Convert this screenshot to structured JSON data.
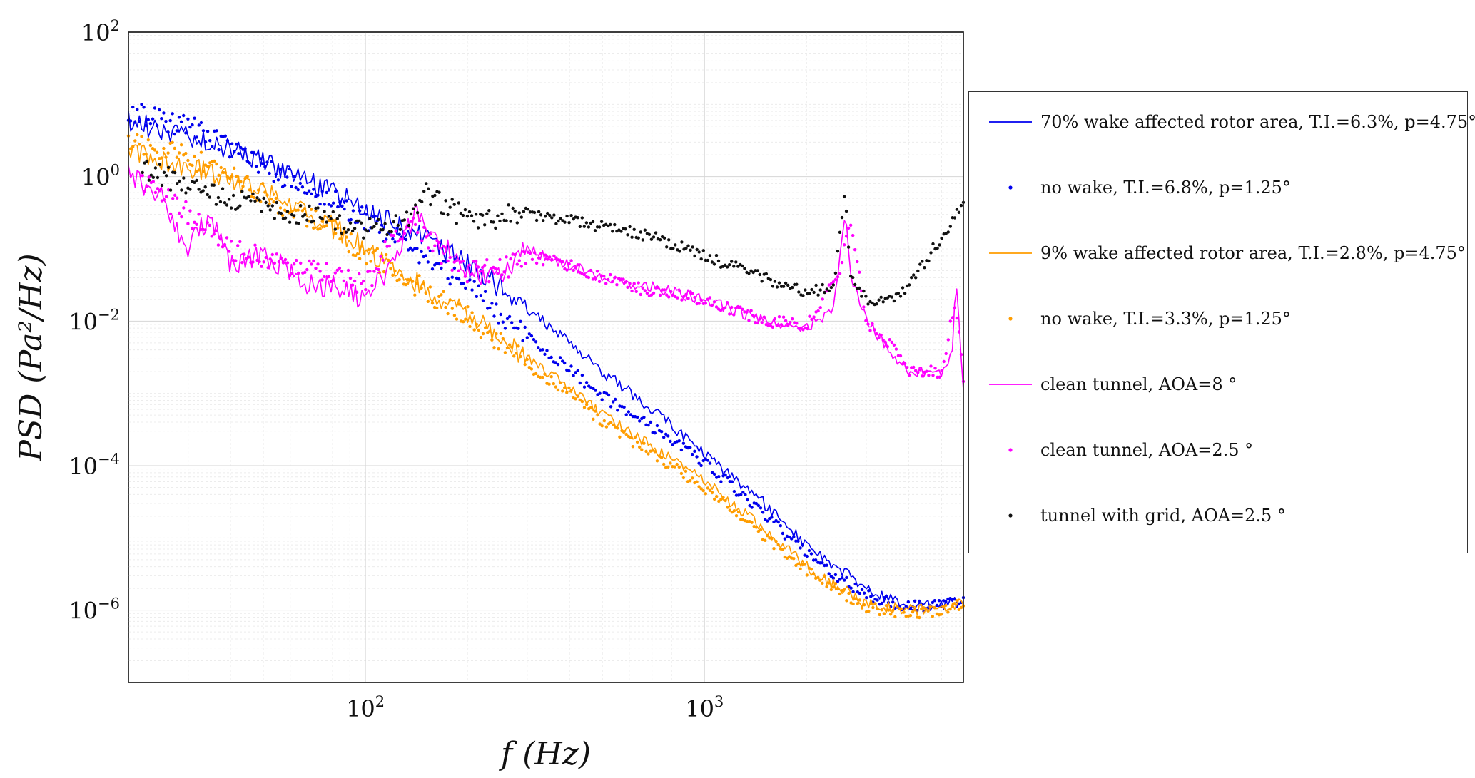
{
  "chart_data": {
    "type": "line",
    "scale": {
      "x": "log",
      "y": "log"
    },
    "xlabel": "f (Hz)",
    "ylabel": "PSD (Pa²/Hz)",
    "xlim": [
      20,
      5800
    ],
    "ylim": [
      1e-07,
      100
    ],
    "grid": true,
    "legend_position": "outside-right",
    "x_ticks": [
      {
        "value": 100,
        "base": "10",
        "exp": "2"
      },
      {
        "value": 1000,
        "base": "10",
        "exp": "3"
      }
    ],
    "y_ticks": [
      {
        "value": 100,
        "base": "10",
        "exp": "2"
      },
      {
        "value": 1,
        "base": "10",
        "exp": "0"
      },
      {
        "value": 0.01,
        "base": "10",
        "exp": "−2"
      },
      {
        "value": 0.0001,
        "base": "10",
        "exp": "−4"
      },
      {
        "value": 1e-06,
        "base": "10",
        "exp": "−6"
      }
    ],
    "series": [
      {
        "name": "70% wake affected rotor area, T.I.=6.3%, p=4.75°",
        "style": "line",
        "color": "#0000ee",
        "x": [
          20,
          30,
          40,
          50,
          60,
          80,
          100,
          130,
          160,
          200,
          250,
          300,
          400,
          500,
          700,
          1000,
          1500,
          2000,
          3000,
          4000,
          5000,
          5800
        ],
        "y": [
          6,
          3.5,
          2.5,
          1.6,
          1.1,
          0.6,
          0.35,
          0.2,
          0.12,
          0.06,
          0.03,
          0.015,
          0.005,
          0.002,
          0.0006,
          0.00015,
          3e-05,
          8e-06,
          2e-06,
          1.1e-06,
          1.2e-06,
          1.3e-06
        ]
      },
      {
        "name": "no wake, T.I.=6.8%, p=1.25°",
        "style": "dots",
        "color": "#0000ee",
        "x": [
          20,
          30,
          40,
          50,
          60,
          80,
          100,
          130,
          160,
          200,
          250,
          300,
          400,
          500,
          700,
          1000,
          1500,
          2000,
          3000,
          4000,
          5000,
          5800
        ],
        "y": [
          8,
          5,
          2.5,
          1.5,
          0.9,
          0.5,
          0.25,
          0.12,
          0.06,
          0.03,
          0.012,
          0.006,
          0.0022,
          0.0009,
          0.00035,
          0.00011,
          2.2e-05,
          6e-06,
          1.6e-06,
          1.1e-06,
          1.2e-06,
          1.3e-06
        ]
      },
      {
        "name": "9% wake affected rotor area, T.I.=2.8%, p=4.75°",
        "style": "line",
        "color": "#ff9d00",
        "x": [
          20,
          30,
          40,
          50,
          60,
          80,
          100,
          130,
          160,
          200,
          250,
          300,
          400,
          500,
          700,
          1000,
          1500,
          2000,
          3000,
          4000,
          5000,
          5800
        ],
        "y": [
          2.2,
          1.4,
          1.0,
          0.6,
          0.4,
          0.2,
          0.1,
          0.045,
          0.025,
          0.012,
          0.006,
          0.003,
          0.0012,
          0.0005,
          0.00018,
          6e-05,
          1.3e-05,
          4e-06,
          1.2e-06,
          1e-06,
          1.1e-06,
          1.3e-06
        ]
      },
      {
        "name": "no wake, T.I.=3.3%, p=1.25°",
        "style": "dots",
        "color": "#ff9d00",
        "x": [
          20,
          30,
          40,
          50,
          60,
          80,
          100,
          130,
          160,
          200,
          250,
          300,
          400,
          500,
          700,
          1000,
          1500,
          2000,
          3000,
          4000,
          5000,
          5800
        ],
        "y": [
          3,
          1.8,
          1.0,
          0.55,
          0.35,
          0.18,
          0.09,
          0.04,
          0.022,
          0.011,
          0.005,
          0.0025,
          0.001,
          0.0004,
          0.00015,
          5e-05,
          1.1e-05,
          3.5e-06,
          1.1e-06,
          9e-07,
          1e-06,
          1.2e-06
        ]
      },
      {
        "name": "clean tunnel, AOA=8 °",
        "style": "line",
        "color": "#ff00ff",
        "x": [
          20,
          25,
          30,
          35,
          40,
          50,
          60,
          70,
          80,
          100,
          120,
          140,
          160,
          200,
          250,
          300,
          400,
          500,
          700,
          1000,
          1500,
          2000,
          2400,
          2600,
          2700,
          3000,
          3500,
          4000,
          5000,
          5400,
          5500,
          5800
        ],
        "y": [
          1.2,
          0.5,
          0.1,
          0.3,
          0.06,
          0.08,
          0.05,
          0.03,
          0.03,
          0.02,
          0.06,
          0.3,
          0.15,
          0.05,
          0.04,
          0.1,
          0.06,
          0.04,
          0.03,
          0.02,
          0.01,
          0.008,
          0.015,
          0.35,
          0.04,
          0.01,
          0.004,
          0.002,
          0.002,
          0.004,
          0.05,
          0.0012
        ]
      },
      {
        "name": "clean tunnel, AOA=2.5 °",
        "style": "dots",
        "color": "#ff00ff",
        "x": [
          22,
          30,
          40,
          50,
          60,
          80,
          100,
          120,
          140,
          160,
          200,
          250,
          300,
          400,
          500,
          700,
          1000,
          1500,
          2000,
          2500,
          2700,
          3000,
          3500,
          4000,
          5000,
          5500,
          5800
        ],
        "y": [
          0.8,
          0.3,
          0.1,
          0.08,
          0.06,
          0.05,
          0.03,
          0.15,
          0.2,
          0.1,
          0.05,
          0.05,
          0.08,
          0.06,
          0.04,
          0.025,
          0.02,
          0.01,
          0.009,
          0.05,
          0.25,
          0.01,
          0.005,
          0.002,
          0.002,
          0.02,
          0.0015
        ]
      },
      {
        "name": "tunnel with grid, AOA=2.5 °",
        "style": "dots",
        "color": "#111111",
        "x": [
          22,
          30,
          40,
          50,
          60,
          80,
          100,
          130,
          150,
          200,
          300,
          400,
          500,
          700,
          1000,
          1500,
          2000,
          2400,
          2600,
          2700,
          3000,
          3500,
          4000,
          5000,
          5800
        ],
        "y": [
          1.2,
          0.8,
          0.5,
          0.4,
          0.3,
          0.25,
          0.18,
          0.25,
          0.6,
          0.25,
          0.3,
          0.25,
          0.2,
          0.15,
          0.08,
          0.04,
          0.025,
          0.03,
          0.6,
          0.04,
          0.02,
          0.02,
          0.03,
          0.15,
          0.4
        ]
      }
    ]
  }
}
